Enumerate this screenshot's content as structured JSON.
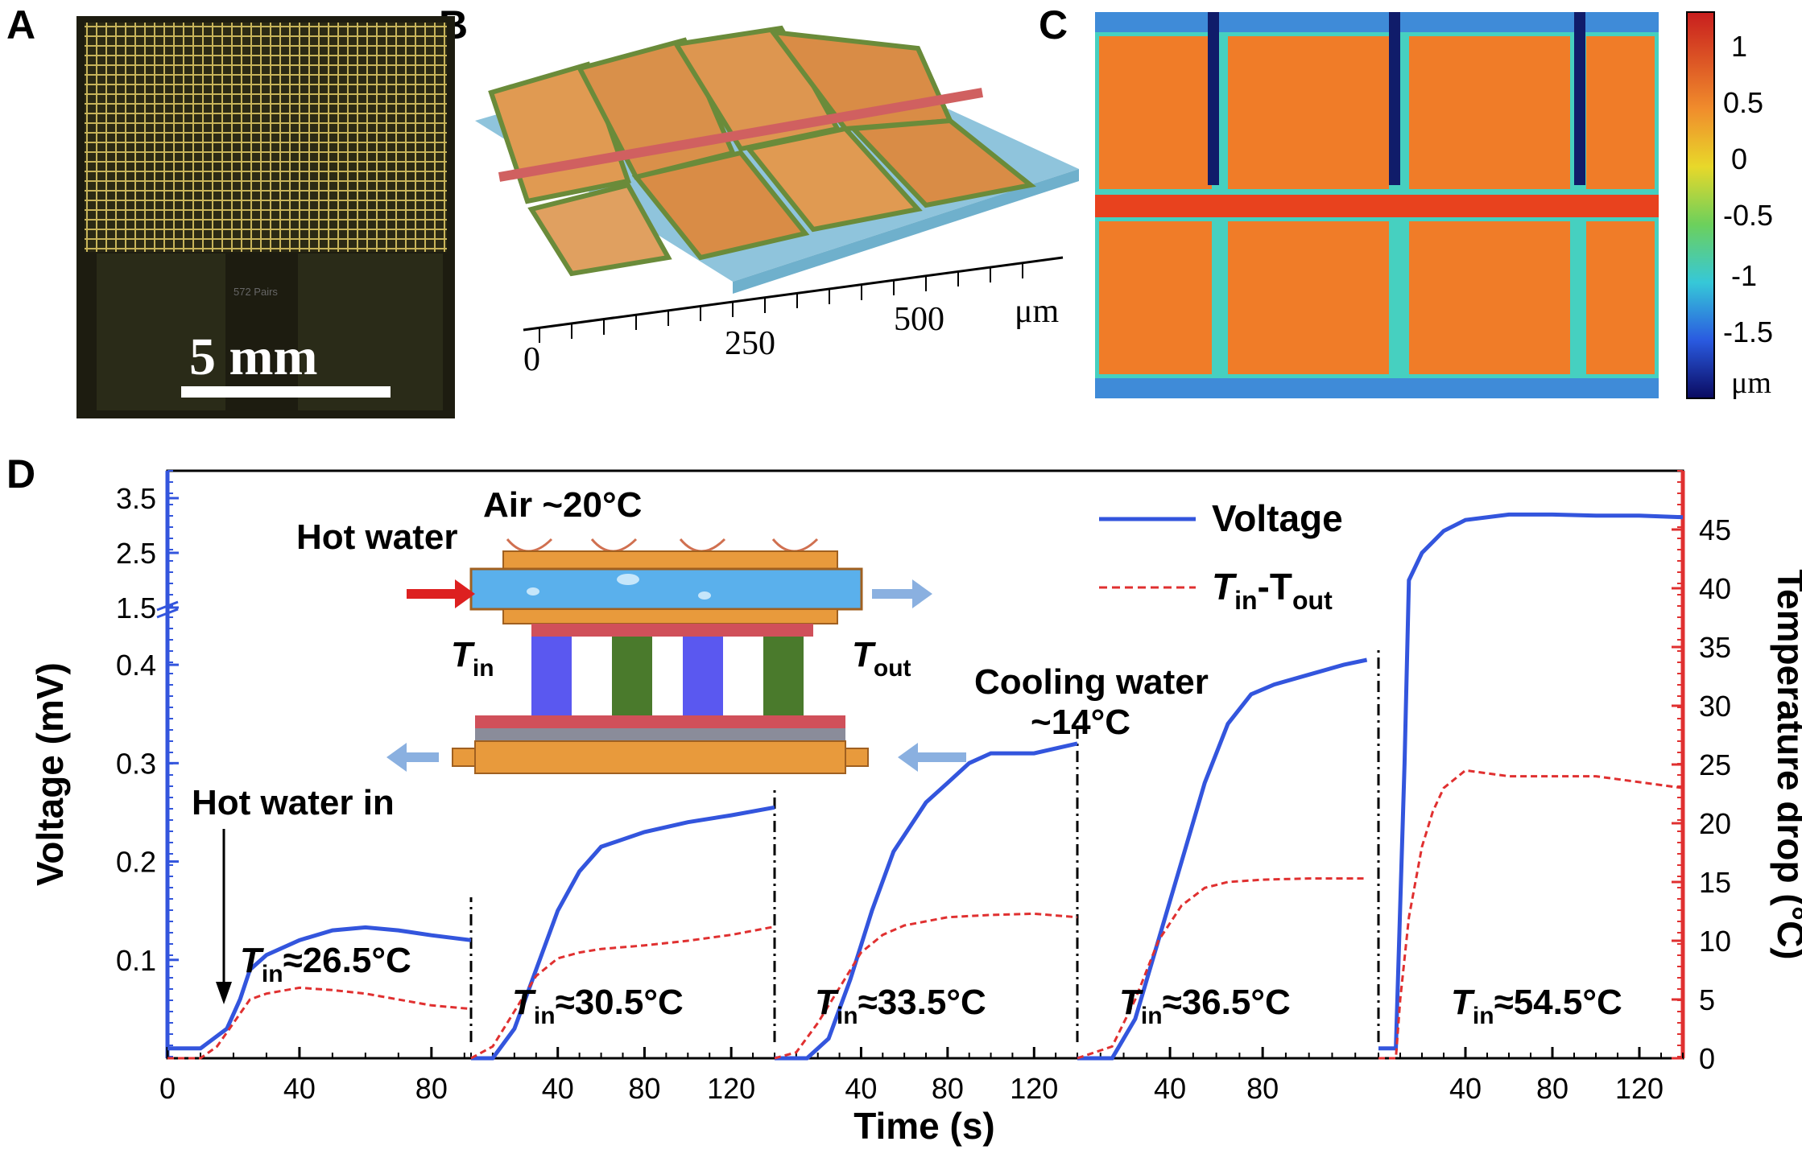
{
  "panels": {
    "a": {
      "letter": "A",
      "scale_bar": "5 mm",
      "chip_label": "572 Pairs"
    },
    "b": {
      "letter": "B",
      "axis_ticks": [
        "0",
        "250",
        "500"
      ],
      "unit": "μm"
    },
    "c": {
      "letter": "C",
      "colorbar_ticks": [
        "1",
        "0.5",
        "0",
        "-0.5",
        "-1",
        "-1.5"
      ],
      "unit": "μm"
    },
    "d": {
      "letter": "D"
    }
  },
  "inset": {
    "air": "Air ~20°C",
    "hot_water": "Hot water",
    "t_in": "T",
    "t_in_sub": "in",
    "t_out": "T",
    "t_out_sub": "out",
    "cooling_water": "Cooling water",
    "cooling_temp": "~14°C",
    "hot_water_in": "Hot water in"
  },
  "chart_data": {
    "type": "line",
    "xlabel": "Time (s)",
    "ylabel": "Voltage (mV)",
    "y2label": "Temperature drop (°C)",
    "legend_position": "top-right",
    "legend": [
      {
        "name": "Voltage",
        "color": "#3355dd",
        "style": "solid"
      },
      {
        "name": "T_in-T_out",
        "label_main": "T",
        "label_sub1": "in",
        "label_dash": "-T",
        "label_sub2": "out",
        "color": "#e03030",
        "style": "dashed"
      }
    ],
    "y_ticks_lower": [
      "0.1",
      "0.2",
      "0.3",
      "0.4"
    ],
    "y_ticks_upper": [
      "1.5",
      "2.5",
      "3.5"
    ],
    "y_break": [
      0.45,
      1.5
    ],
    "y2_ticks": [
      "0",
      "5",
      "10",
      "15",
      "20",
      "25",
      "30",
      "35",
      "40",
      "45"
    ],
    "y2lim": [
      0,
      50
    ],
    "segments": [
      {
        "label_T": "T",
        "label_sub": "in",
        "label_val": "≈26.5°C",
        "xlim": [
          0,
          92
        ],
        "x_ticks": [
          "0",
          "40",
          "80"
        ],
        "voltage": {
          "x": [
            0,
            10,
            18,
            22,
            25,
            30,
            40,
            50,
            60,
            70,
            80,
            92
          ],
          "y": [
            0.01,
            0.01,
            0.03,
            0.06,
            0.09,
            0.105,
            0.12,
            0.13,
            0.133,
            0.13,
            0.125,
            0.12
          ]
        },
        "temp_drop": {
          "x": [
            0,
            10,
            15,
            20,
            25,
            30,
            40,
            50,
            60,
            70,
            80,
            92
          ],
          "y": [
            0,
            0,
            1,
            3,
            5,
            5.5,
            6,
            5.8,
            5.5,
            5,
            4.5,
            4.2
          ]
        }
      },
      {
        "label_T": "T",
        "label_sub": "in",
        "label_val": "≈30.5°C",
        "xlim": [
          0,
          140
        ],
        "x_ticks": [
          "40",
          "80",
          "120"
        ],
        "voltage": {
          "x": [
            0,
            10,
            20,
            30,
            40,
            50,
            60,
            80,
            100,
            120,
            140
          ],
          "y": [
            0,
            0,
            0.03,
            0.09,
            0.15,
            0.19,
            0.215,
            0.23,
            0.24,
            0.247,
            0.255
          ]
        },
        "temp_drop": {
          "x": [
            0,
            10,
            20,
            30,
            40,
            50,
            60,
            80,
            100,
            120,
            140
          ],
          "y": [
            0,
            1,
            4,
            7,
            8.5,
            9,
            9.3,
            9.6,
            10,
            10.5,
            11.2
          ]
        }
      },
      {
        "label_T": "T",
        "label_sub": "in",
        "label_val": "≈33.5°C",
        "xlim": [
          0,
          140
        ],
        "x_ticks": [
          "40",
          "80",
          "120"
        ],
        "voltage": {
          "x": [
            0,
            15,
            25,
            35,
            45,
            55,
            70,
            80,
            90,
            100,
            120,
            140
          ],
          "y": [
            0,
            0,
            0.02,
            0.08,
            0.15,
            0.21,
            0.26,
            0.28,
            0.3,
            0.31,
            0.31,
            0.32
          ]
        },
        "temp_drop": {
          "x": [
            0,
            10,
            20,
            30,
            40,
            50,
            60,
            80,
            100,
            120,
            140
          ],
          "y": [
            0,
            0.5,
            3,
            6,
            9,
            10.5,
            11.3,
            12,
            12.2,
            12.3,
            12
          ]
        }
      },
      {
        "label_T": "T",
        "label_sub": "in",
        "label_val": "≈36.5°C",
        "xlim": [
          0,
          130
        ],
        "x_ticks": [
          "40",
          "80"
        ],
        "voltage": {
          "x": [
            0,
            15,
            25,
            35,
            45,
            55,
            65,
            75,
            85,
            100,
            115,
            125
          ],
          "y": [
            0,
            0,
            0.04,
            0.12,
            0.2,
            0.28,
            0.34,
            0.37,
            0.38,
            0.39,
            0.4,
            0.405
          ]
        },
        "temp_drop": {
          "x": [
            0,
            15,
            25,
            35,
            45,
            55,
            65,
            80,
            100,
            125
          ],
          "y": [
            0,
            1,
            5,
            10,
            13,
            14.5,
            15,
            15.2,
            15.3,
            15.3
          ]
        }
      },
      {
        "label_T": "T",
        "label_sub": "in",
        "label_val": "≈54.5°C",
        "xlim": [
          0,
          140
        ],
        "x_ticks": [
          "40",
          "80",
          "120"
        ],
        "voltage": {
          "x": [
            0,
            8,
            12,
            14,
            20,
            30,
            40,
            60,
            80,
            100,
            120,
            140
          ],
          "y": [
            0.01,
            0.01,
            0.3,
            2.0,
            2.5,
            2.9,
            3.1,
            3.2,
            3.2,
            3.18,
            3.18,
            3.15
          ]
        },
        "temp_drop": {
          "x": [
            0,
            8,
            10,
            14,
            20,
            25,
            30,
            40,
            60,
            80,
            100,
            120,
            140
          ],
          "y": [
            0,
            0,
            5,
            12,
            18,
            21,
            23,
            24.5,
            24,
            24,
            24,
            23.5,
            23
          ]
        }
      }
    ]
  }
}
